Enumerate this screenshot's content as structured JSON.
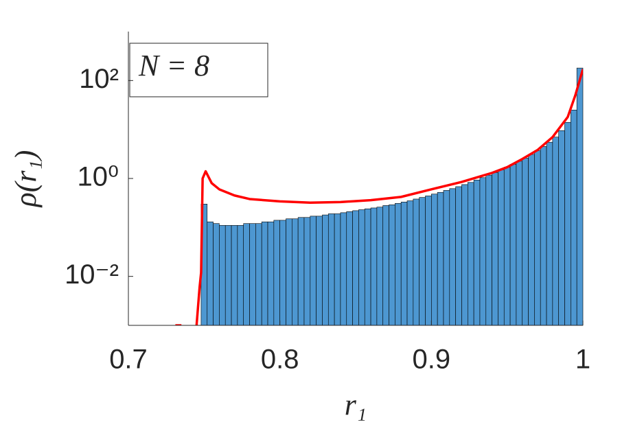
{
  "chart_data": {
    "type": "histogram",
    "annotation": "N = 8",
    "x_label": "r₁",
    "y_label": "ρ(r₁)",
    "xlim": [
      0.7,
      1
    ],
    "xticks": [
      0.7,
      0.8,
      0.9,
      1
    ],
    "ylim": [
      0.001,
      1000
    ],
    "yticks": [
      {
        "value": 0.01,
        "label": "10⁻²"
      },
      {
        "value": 1,
        "label": "10⁰"
      },
      {
        "value": 100,
        "label": "10²"
      }
    ],
    "log_y": true,
    "color": "#4d97d1",
    "edge_color": "#000000",
    "bins": [
      0.748,
      0.752,
      0.756,
      0.76,
      0.764,
      0.768,
      0.772,
      0.776,
      0.78,
      0.784,
      0.788,
      0.792,
      0.796,
      0.8,
      0.804,
      0.808,
      0.812,
      0.816,
      0.82,
      0.824,
      0.828,
      0.832,
      0.836,
      0.84,
      0.844,
      0.848,
      0.852,
      0.856,
      0.86,
      0.864,
      0.868,
      0.872,
      0.876,
      0.88,
      0.884,
      0.888,
      0.892,
      0.896,
      0.9,
      0.904,
      0.908,
      0.912,
      0.916,
      0.92,
      0.924,
      0.928,
      0.932,
      0.936,
      0.94,
      0.944,
      0.948,
      0.952,
      0.956,
      0.96,
      0.964,
      0.968,
      0.972,
      0.976,
      0.98,
      0.984,
      0.988,
      0.992,
      0.996,
      1.0
    ],
    "values": [
      0.3,
      0.13,
      0.12,
      0.11,
      0.11,
      0.11,
      0.11,
      0.12,
      0.12,
      0.12,
      0.13,
      0.13,
      0.14,
      0.14,
      0.15,
      0.15,
      0.16,
      0.16,
      0.17,
      0.17,
      0.18,
      0.19,
      0.19,
      0.2,
      0.21,
      0.22,
      0.23,
      0.24,
      0.25,
      0.26,
      0.28,
      0.29,
      0.31,
      0.33,
      0.35,
      0.38,
      0.41,
      0.44,
      0.48,
      0.52,
      0.57,
      0.62,
      0.68,
      0.75,
      0.83,
      0.93,
      1.04,
      1.17,
      1.32,
      1.5,
      1.7,
      1.95,
      2.25,
      2.6,
      3.1,
      3.7,
      4.5,
      5.5,
      7,
      9.5,
      14,
      25,
      180
    ],
    "curve": {
      "color": "#ff0000",
      "x": [
        0.731,
        0.735,
        null,
        0.745,
        0.747,
        0.748,
        0.749,
        0.751,
        0.755,
        0.76,
        0.77,
        0.78,
        0.8,
        0.82,
        0.84,
        0.86,
        0.88,
        0.9,
        0.92,
        0.94,
        0.95,
        0.96,
        0.97,
        0.98,
        0.99,
        0.995,
        1.0
      ],
      "values": [
        0.001,
        0.001,
        null,
        0.001,
        0.006,
        0.012,
        1.0,
        1.4,
        0.8,
        0.6,
        0.45,
        0.38,
        0.34,
        0.32,
        0.33,
        0.36,
        0.42,
        0.6,
        0.85,
        1.3,
        1.7,
        2.5,
        3.8,
        7,
        18,
        50,
        170
      ]
    }
  }
}
